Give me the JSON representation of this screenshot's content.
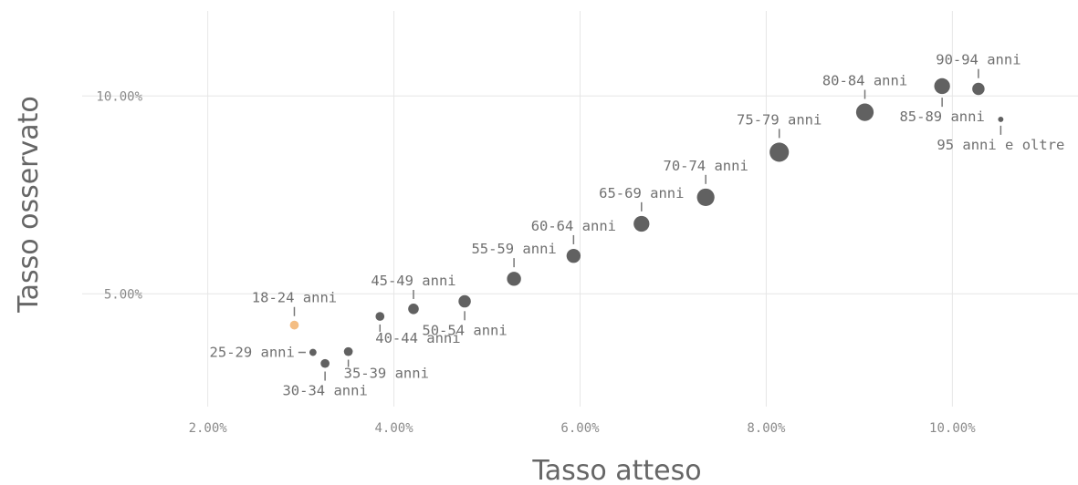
{
  "chart_data": {
    "type": "scatter",
    "xlabel": "Tasso atteso",
    "ylabel": "Tasso osservato",
    "xlim": [
      0.0065,
      0.1135
    ],
    "ylim": [
      0.0215,
      0.1215
    ],
    "x_ticks": [
      {
        "value": 0.02,
        "label": "2.00%"
      },
      {
        "value": 0.04,
        "label": "4.00%"
      },
      {
        "value": 0.06,
        "label": "6.00%"
      },
      {
        "value": 0.08,
        "label": "8.00%"
      },
      {
        "value": 0.1,
        "label": "10.00%"
      }
    ],
    "y_ticks": [
      {
        "value": 0.05,
        "label": "5.00%"
      },
      {
        "value": 0.1,
        "label": "10.00%"
      }
    ],
    "grid": true,
    "legend": "none",
    "colors": {
      "default": "#616161",
      "highlight": "#f4bd82"
    },
    "points": [
      {
        "label": "18-24 anni",
        "x": 0.0293,
        "y": 0.0421,
        "size": 3,
        "highlight": true,
        "label_pos": "above"
      },
      {
        "label": "25-29 anni",
        "x": 0.0313,
        "y": 0.0352,
        "size": 2,
        "label_pos": "left"
      },
      {
        "label": "30-34 anni",
        "x": 0.0326,
        "y": 0.0324,
        "size": 3,
        "label_pos": "below"
      },
      {
        "label": "35-39 anni",
        "x": 0.0351,
        "y": 0.0354,
        "size": 3,
        "label_pos": "below-right"
      },
      {
        "label": "40-44 anni",
        "x": 0.0385,
        "y": 0.0443,
        "size": 3,
        "label_pos": "below-right"
      },
      {
        "label": "45-49 anni",
        "x": 0.0421,
        "y": 0.0462,
        "size": 4,
        "label_pos": "above"
      },
      {
        "label": "50-54 anni",
        "x": 0.0476,
        "y": 0.0481,
        "size": 5,
        "label_pos": "below"
      },
      {
        "label": "55-59 anni",
        "x": 0.0529,
        "y": 0.0538,
        "size": 6,
        "label_pos": "above"
      },
      {
        "label": "60-64 anni",
        "x": 0.0593,
        "y": 0.0596,
        "size": 6,
        "label_pos": "above"
      },
      {
        "label": "65-69 anni",
        "x": 0.0666,
        "y": 0.0677,
        "size": 7,
        "label_pos": "above"
      },
      {
        "label": "70-74 anni",
        "x": 0.0735,
        "y": 0.0744,
        "size": 8,
        "label_pos": "above"
      },
      {
        "label": "75-79 anni",
        "x": 0.0814,
        "y": 0.0858,
        "size": 9,
        "label_pos": "above"
      },
      {
        "label": "80-84 anni",
        "x": 0.0906,
        "y": 0.0959,
        "size": 8,
        "label_pos": "above"
      },
      {
        "label": "85-89 anni",
        "x": 0.0989,
        "y": 0.1025,
        "size": 7,
        "label_pos": "below"
      },
      {
        "label": "90-94 anni",
        "x": 0.1028,
        "y": 0.1018,
        "size": 5,
        "label_pos": "above"
      },
      {
        "label": "95 anni e oltre",
        "x": 0.1052,
        "y": 0.0941,
        "size": 1,
        "label_pos": "below"
      }
    ]
  }
}
